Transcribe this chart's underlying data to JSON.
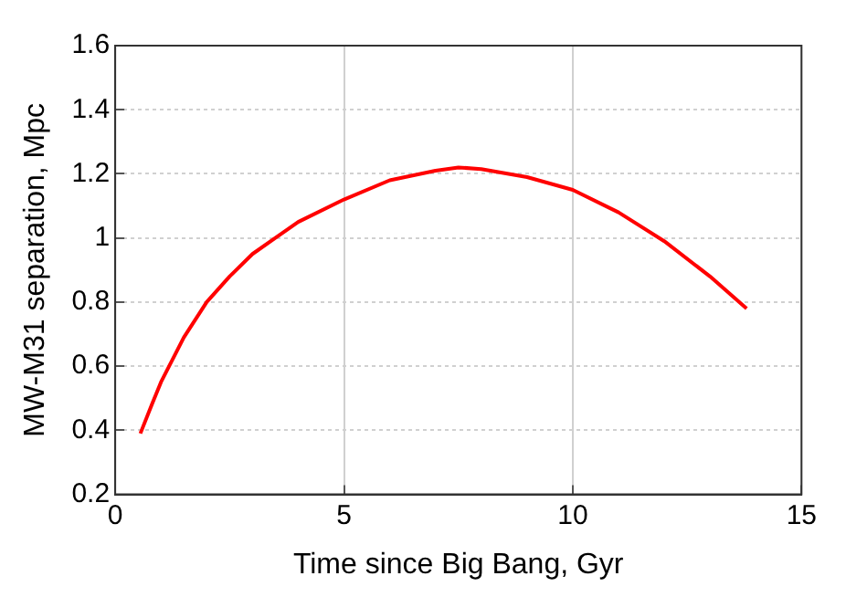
{
  "chart_data": {
    "type": "line",
    "xlabel": "Time since Big Bang, Gyr",
    "ylabel": "MW-M31 separation, Mpc",
    "x": [
      0.55,
      0.8,
      1,
      1.5,
      2,
      2.5,
      3,
      3.5,
      4,
      5,
      6,
      7,
      7.5,
      8,
      9,
      10,
      11,
      12,
      13,
      13.8
    ],
    "series": [
      {
        "color": "#ff0000",
        "values": [
          0.39,
          0.48,
          0.55,
          0.69,
          0.8,
          0.88,
          0.95,
          1.0,
          1.05,
          1.12,
          1.18,
          1.21,
          1.22,
          1.215,
          1.19,
          1.15,
          1.08,
          0.99,
          0.88,
          0.78
        ]
      }
    ],
    "xlim": [
      0,
      15
    ],
    "xticks": [
      0,
      5,
      10,
      15
    ],
    "ylim": [
      0.2,
      1.6
    ],
    "yticks": [
      0.2,
      0.4,
      0.6,
      0.8,
      1,
      1.2,
      1.4,
      1.6
    ],
    "grid": true,
    "legend": false,
    "marker": "none",
    "line_style": "solid"
  }
}
